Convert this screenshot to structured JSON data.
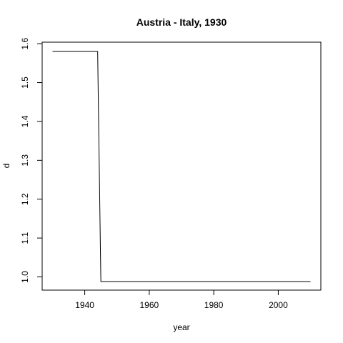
{
  "chart_data": {
    "type": "line",
    "title": "Austria - Italy, 1930",
    "xlabel": "year",
    "ylabel": "d",
    "xlim": [
      1926.8,
      2013.2
    ],
    "ylim": [
      0.966,
      1.604
    ],
    "x_ticks": [
      1940,
      1960,
      1980,
      2000
    ],
    "y_ticks": [
      1.0,
      1.1,
      1.2,
      1.3,
      1.4,
      1.5,
      1.6
    ],
    "y_tick_labels": [
      "1.0",
      "1.1",
      "1.2",
      "1.3",
      "1.4",
      "1.5",
      "1.6"
    ],
    "series": [
      {
        "x": [
          1930,
          1944,
          1945,
          2010
        ],
        "y": [
          1.58,
          1.58,
          0.988,
          0.988
        ],
        "color": "#000000"
      }
    ],
    "grid": false,
    "legend": "none"
  }
}
